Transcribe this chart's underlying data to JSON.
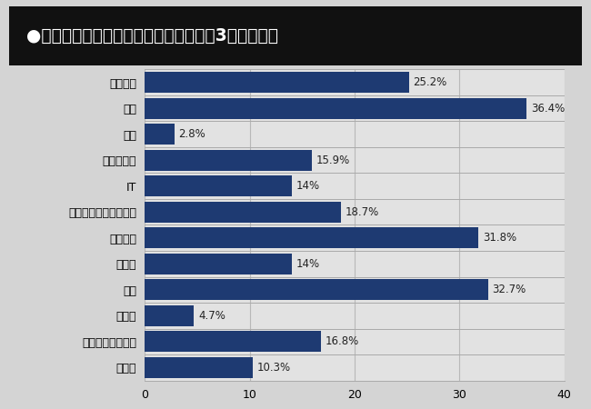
{
  "title": "●希望する興味のある業界・業種（最大3つ選択可）",
  "categories": [
    "メーカー",
    "商社",
    "小売",
    "金融・保険",
    "IT",
    "広告・出版・マスコミ",
    "コンサル",
    "不動産",
    "人材",
    "公務員",
    "未定・わからない",
    "その他"
  ],
  "values": [
    25.2,
    36.4,
    2.8,
    15.9,
    14.0,
    18.7,
    31.8,
    14.0,
    32.7,
    4.7,
    16.8,
    10.3
  ],
  "labels": [
    "25.2%",
    "36.4%",
    "2.8%",
    "15.9%",
    "14%",
    "18.7%",
    "31.8%",
    "14%",
    "32.7%",
    "4.7%",
    "16.8%",
    "10.3%"
  ],
  "bar_color": "#1e3a72",
  "title_bg_color": "#111111",
  "title_text_color": "#ffffff",
  "bg_color": "#d4d4d4",
  "plot_bg_color": "#e2e2e2",
  "xlim": [
    0,
    40
  ],
  "xticks": [
    0,
    10,
    20,
    30,
    40
  ]
}
